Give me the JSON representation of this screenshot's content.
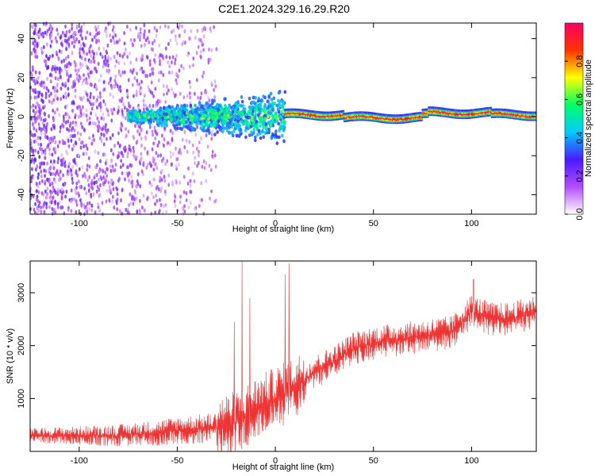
{
  "chart_data": [
    {
      "type": "heatmap",
      "title": "C2E1.2024.329.16.29.R20",
      "xlabel": "Height of straight line (km)",
      "ylabel": "Frequency (Hz)",
      "xlim": [
        -125,
        133
      ],
      "ylim": [
        -50,
        48
      ],
      "xticks": [
        -100,
        -50,
        0,
        50,
        100
      ],
      "yticks": [
        -40,
        -20,
        0,
        20,
        40
      ],
      "colorbar": {
        "label": "Normalized spectral amplitude",
        "range": [
          0,
          1
        ],
        "ticks": [
          0.0,
          0.2,
          0.4,
          0.6,
          0.8
        ],
        "colors": [
          "#ffffff",
          "#b34dff",
          "#4a1aff",
          "#00ccff",
          "#00ff66",
          "#ffff00",
          "#ff3300",
          "#ff0066"
        ]
      },
      "description_of_data": {
        "region_noise": {
          "x_range": [
            -125,
            -30
          ],
          "freq_spread": [
            -50,
            48
          ],
          "amplitude": [
            0.05,
            0.3
          ]
        },
        "region_transition": {
          "x_range": [
            -75,
            5
          ],
          "freq_center": 0,
          "freq_spread": [
            -15,
            15
          ],
          "amplitude": [
            0.2,
            0.6
          ]
        },
        "region_signal": {
          "x_range": [
            5,
            133
          ],
          "freq_center": 1,
          "freq_width": 3,
          "amplitude": [
            0.6,
            1.0
          ]
        }
      }
    },
    {
      "type": "line",
      "title": "",
      "xlabel": "Height of straight line (km)",
      "ylabel": "SNR (10 * v/v)",
      "xlim": [
        -125,
        133
      ],
      "ylim": [
        0,
        3600
      ],
      "xticks": [
        -100,
        -50,
        0,
        50,
        100
      ],
      "yticks": [
        1000,
        2000,
        3000
      ],
      "series": [
        {
          "color": "#ee3333",
          "trend": {
            "x": [
              -125,
              -100,
              -80,
              -60,
              -50,
              -40,
              -30,
              -20,
              -10,
              0,
              10,
              20,
              30,
              40,
              50,
              60,
              70,
              80,
              90,
              100,
              110,
              120,
              133
            ],
            "y": [
              300,
              300,
              300,
              350,
              400,
              420,
              450,
              550,
              800,
              1000,
              1200,
              1500,
              1700,
              1950,
              2050,
              2100,
              2150,
              2200,
              2250,
              2650,
              2500,
              2500,
              2650
            ]
          },
          "spikes": [
            {
              "x": -17,
              "y": 3600
            },
            {
              "x": 7,
              "y": 3550
            },
            {
              "x": 5,
              "y": 3350
            },
            {
              "x": -21,
              "y": 2450
            },
            {
              "x": -13,
              "y": 2900
            },
            {
              "x": 101,
              "y": 3250
            }
          ]
        }
      ]
    }
  ]
}
